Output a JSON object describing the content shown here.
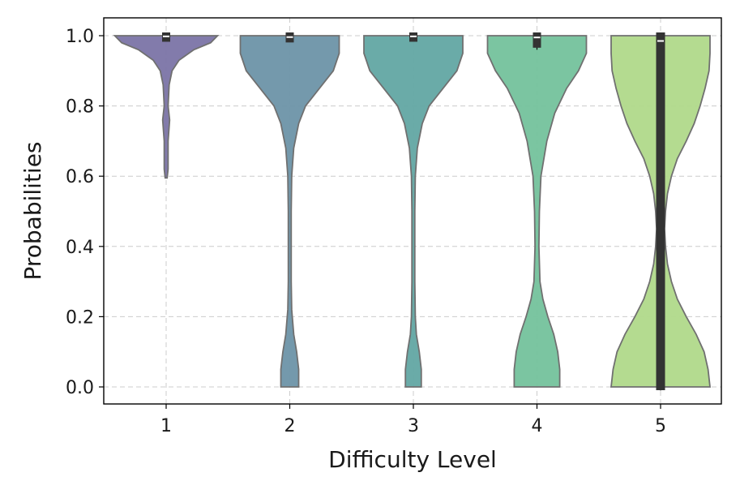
{
  "chart_data": {
    "type": "violin",
    "title": "",
    "xlabel": "Difficulty Level",
    "ylabel": "Probabilities",
    "ylim": [
      -0.05,
      1.05
    ],
    "yticks": [
      0.0,
      0.2,
      0.4,
      0.6,
      0.8,
      1.0
    ],
    "ytick_labels": [
      "0.0",
      "0.2",
      "0.4",
      "0.6",
      "0.8",
      "1.0"
    ],
    "grid": true,
    "categories": [
      "1",
      "2",
      "3",
      "4",
      "5"
    ],
    "series": [
      {
        "name": "1",
        "color": "#7b74a6",
        "density": [
          [
            0.595,
            0.01
          ],
          [
            0.62,
            0.02
          ],
          [
            0.7,
            0.02
          ],
          [
            0.76,
            0.035
          ],
          [
            0.8,
            0.02
          ],
          [
            0.86,
            0.03
          ],
          [
            0.9,
            0.06
          ],
          [
            0.93,
            0.13
          ],
          [
            0.96,
            0.28
          ],
          [
            0.98,
            0.45
          ],
          [
            1.0,
            0.52
          ]
        ],
        "box": {
          "q1": 0.992,
          "median": 0.998,
          "q3": 1.0,
          "whisker_low": 0.99,
          "whisker_high": 1.0
        }
      },
      {
        "name": "2",
        "color": "#6d93a8",
        "density": [
          [
            0.0,
            0.09
          ],
          [
            0.05,
            0.09
          ],
          [
            0.1,
            0.07
          ],
          [
            0.15,
            0.04
          ],
          [
            0.22,
            0.02
          ],
          [
            0.3,
            0.015
          ],
          [
            0.4,
            0.015
          ],
          [
            0.5,
            0.015
          ],
          [
            0.6,
            0.02
          ],
          [
            0.68,
            0.04
          ],
          [
            0.75,
            0.09
          ],
          [
            0.8,
            0.16
          ],
          [
            0.85,
            0.3
          ],
          [
            0.9,
            0.44
          ],
          [
            0.95,
            0.5
          ],
          [
            1.0,
            0.5
          ]
        ],
        "box": {
          "q1": 0.99,
          "median": 0.996,
          "q3": 1.0,
          "whisker_low": 0.985,
          "whisker_high": 1.0
        }
      },
      {
        "name": "3",
        "color": "#62a7a3",
        "density": [
          [
            0.0,
            0.08
          ],
          [
            0.05,
            0.08
          ],
          [
            0.1,
            0.06
          ],
          [
            0.15,
            0.03
          ],
          [
            0.2,
            0.02
          ],
          [
            0.3,
            0.015
          ],
          [
            0.4,
            0.015
          ],
          [
            0.5,
            0.015
          ],
          [
            0.6,
            0.02
          ],
          [
            0.68,
            0.04
          ],
          [
            0.75,
            0.09
          ],
          [
            0.8,
            0.16
          ],
          [
            0.85,
            0.3
          ],
          [
            0.9,
            0.44
          ],
          [
            0.95,
            0.5
          ],
          [
            1.0,
            0.5
          ]
        ],
        "box": {
          "q1": 0.992,
          "median": 0.998,
          "q3": 1.0,
          "whisker_low": 0.99,
          "whisker_high": 1.0
        }
      },
      {
        "name": "4",
        "color": "#74c29c",
        "density": [
          [
            0.0,
            0.23
          ],
          [
            0.05,
            0.23
          ],
          [
            0.1,
            0.21
          ],
          [
            0.15,
            0.17
          ],
          [
            0.2,
            0.11
          ],
          [
            0.25,
            0.06
          ],
          [
            0.3,
            0.03
          ],
          [
            0.4,
            0.02
          ],
          [
            0.5,
            0.025
          ],
          [
            0.6,
            0.04
          ],
          [
            0.7,
            0.1
          ],
          [
            0.78,
            0.18
          ],
          [
            0.85,
            0.3
          ],
          [
            0.9,
            0.42
          ],
          [
            0.95,
            0.5
          ],
          [
            1.0,
            0.5
          ]
        ],
        "box": {
          "q1": 0.975,
          "median": 0.995,
          "q3": 1.0,
          "whisker_low": 0.96,
          "whisker_high": 1.0
        }
      },
      {
        "name": "5",
        "color": "#b0d98a",
        "density": [
          [
            0.0,
            0.5
          ],
          [
            0.05,
            0.48
          ],
          [
            0.1,
            0.44
          ],
          [
            0.15,
            0.36
          ],
          [
            0.2,
            0.26
          ],
          [
            0.25,
            0.17
          ],
          [
            0.3,
            0.11
          ],
          [
            0.35,
            0.07
          ],
          [
            0.4,
            0.05
          ],
          [
            0.45,
            0.04
          ],
          [
            0.5,
            0.05
          ],
          [
            0.55,
            0.07
          ],
          [
            0.6,
            0.11
          ],
          [
            0.65,
            0.17
          ],
          [
            0.7,
            0.26
          ],
          [
            0.75,
            0.34
          ],
          [
            0.8,
            0.4
          ],
          [
            0.85,
            0.45
          ],
          [
            0.9,
            0.49
          ],
          [
            0.95,
            0.5
          ],
          [
            1.0,
            0.5
          ]
        ],
        "box": {
          "q1": 0.0,
          "median": 0.985,
          "q3": 1.0,
          "whisker_low": -0.01,
          "whisker_high": 1.0
        }
      }
    ]
  }
}
